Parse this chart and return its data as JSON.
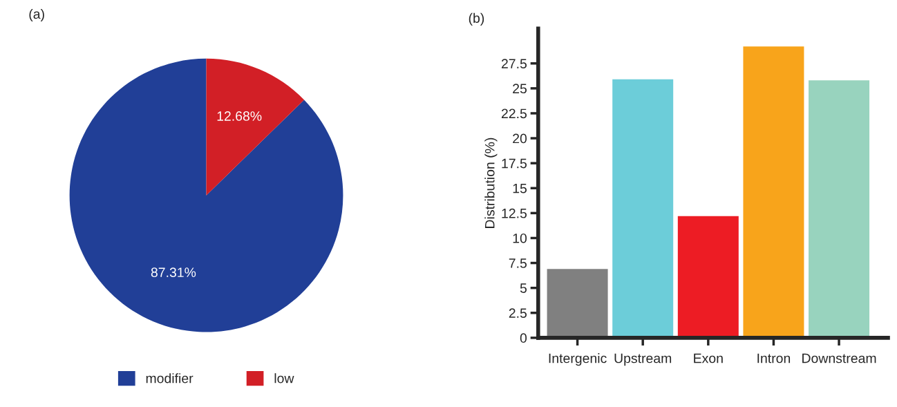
{
  "chart_data": [
    {
      "type": "pie",
      "title": "(a)",
      "categories": [
        "modifier",
        "low"
      ],
      "values": [
        87.31,
        12.68
      ],
      "colors": [
        "#213f97",
        "#d21f26"
      ],
      "value_labels": [
        "87.31%",
        "12.68%"
      ],
      "legend": "bottom"
    },
    {
      "type": "bar",
      "title": "(b)",
      "ylabel": "Distribution (%)",
      "categories": [
        "Intergenic",
        "Upstream",
        "Exon",
        "Intron",
        "Downstream"
      ],
      "values": [
        6.9,
        25.9,
        12.2,
        29.2,
        25.8
      ],
      "colors": [
        "#808080",
        "#6ccdd9",
        "#ed1c24",
        "#f8a41b",
        "#98d3be"
      ],
      "ylim": [
        0,
        31
      ],
      "yticks": [
        0,
        2.5,
        5,
        7.5,
        10,
        12.5,
        15,
        17.5,
        20,
        22.5,
        25,
        27.5
      ],
      "grid": false
    }
  ]
}
